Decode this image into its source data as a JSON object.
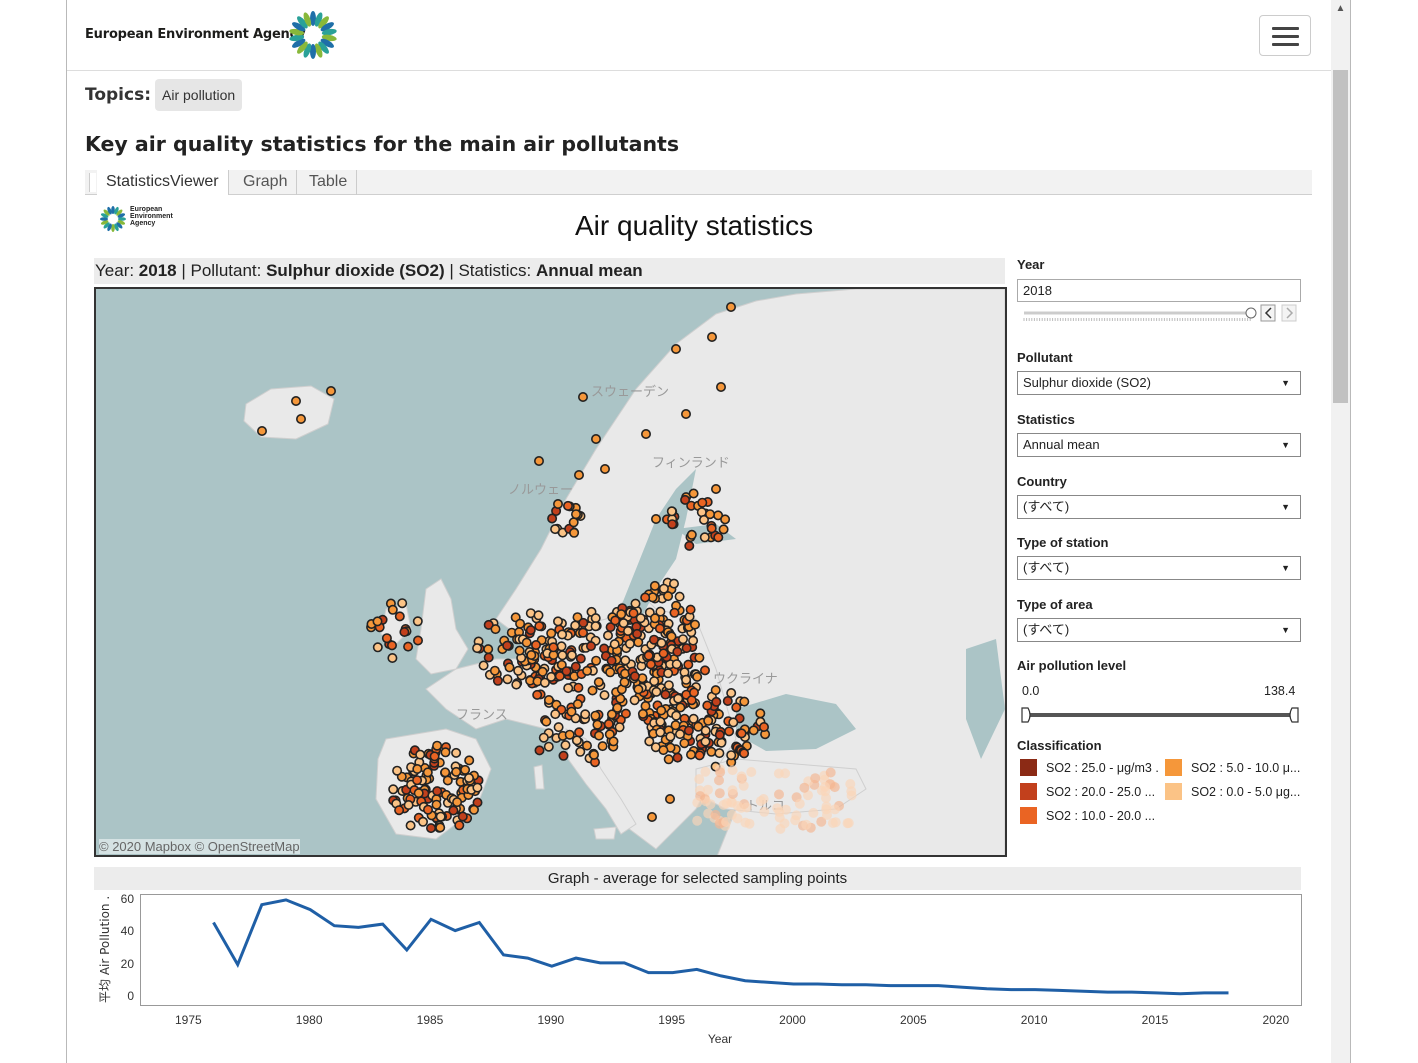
{
  "header": {
    "brand": "European Environment Agency",
    "menu_icon": "hamburger-icon"
  },
  "topics": {
    "label": "Topics:",
    "chip": "Air pollution"
  },
  "page_title": "Key air quality statistics for the main air pollutants",
  "tabs": [
    "StatisticsViewer",
    "Graph",
    "Table"
  ],
  "viz": {
    "logo_line1": "European",
    "logo_line2": "Environment",
    "logo_line3": "Agency",
    "title": "Air quality statistics"
  },
  "selection": {
    "year_label": "Year: ",
    "year": "2018",
    "pollutant_label": " | Pollutant: ",
    "pollutant": "Sulphur dioxide (SO2)",
    "stat_label": " | Statistics: ",
    "stat": "Annual mean"
  },
  "map": {
    "credit": "© 2020 Mapbox  © OpenStreetMap",
    "place_labels": [
      "スウェーデン",
      "フィンランド",
      "ノルウェー",
      "ウクライナ",
      "フランス",
      "トルコ"
    ]
  },
  "panel": {
    "year_label": "Year",
    "year_value": "2018",
    "pollutant_label": "Pollutant",
    "pollutant_value": "Sulphur dioxide (SO2)",
    "statistics_label": "Statistics",
    "statistics_value": "Annual mean",
    "country_label": "Country",
    "country_value": "(すべて)",
    "station_label": "Type of station",
    "station_value": "(すべて)",
    "area_label": "Type of area",
    "area_value": "(すべて)",
    "level_label": "Air pollution level",
    "level_min": "0.0",
    "level_max": "138.4",
    "classification_label": "Classification",
    "legend": [
      {
        "label": "SO2 : 25.0 - μg/m3 .",
        "color": "#8b2a15"
      },
      {
        "label": "SO2 : 20.0 - 25.0 ...",
        "color": "#c2401c"
      },
      {
        "label": "SO2 : 10.0 - 20.0 ...",
        "color": "#ea6423"
      },
      {
        "label": "SO2 : 5.0 - 10.0 μ...",
        "color": "#f5973a"
      },
      {
        "label": "SO2 : 0.0 - 5.0 μg...",
        "color": "#fbc386"
      }
    ]
  },
  "graph": {
    "title": "Graph - average for selected sampling points",
    "y_axis_title": "平均 Air Pollution ..",
    "x_axis_title": "Year",
    "line_color": "#1f5fa6"
  },
  "chart_data": {
    "type": "line",
    "title": "Graph - average for selected sampling points",
    "xlabel": "Year",
    "ylabel": "平均 Air Pollution ..",
    "xlim": [
      1973,
      2021
    ],
    "ylim": [
      -5,
      63
    ],
    "x_ticks": [
      "1975",
      "1980",
      "1985",
      "1990",
      "1995",
      "2000",
      "2005",
      "2010",
      "2015",
      "2020"
    ],
    "y_ticks": [
      "60",
      "40",
      "20",
      "0"
    ],
    "series": [
      {
        "x": [
          1976,
          1977,
          1978,
          1979,
          1980,
          1981,
          1982,
          1983,
          1984,
          1985,
          1986,
          1987,
          1988,
          1989,
          1990,
          1991,
          1992,
          1993,
          1994,
          1995,
          1996,
          1997,
          1998,
          1999,
          2000,
          2001,
          2002,
          2003,
          2004,
          2005,
          2006,
          2007,
          2008,
          2009,
          2010,
          2011,
          2012,
          2013,
          2014,
          2015,
          2016,
          2017,
          2018
        ],
        "values": [
          46,
          20,
          57,
          60,
          54,
          44,
          43,
          45,
          29,
          48,
          41,
          46,
          26,
          24,
          19,
          24,
          21,
          21,
          15,
          15,
          17,
          13,
          10,
          9,
          8,
          8,
          7.5,
          7.5,
          7,
          7,
          7,
          6,
          5,
          4.5,
          4.5,
          4,
          3.5,
          3,
          3,
          2.5,
          2,
          2.5,
          2.5
        ]
      }
    ]
  }
}
